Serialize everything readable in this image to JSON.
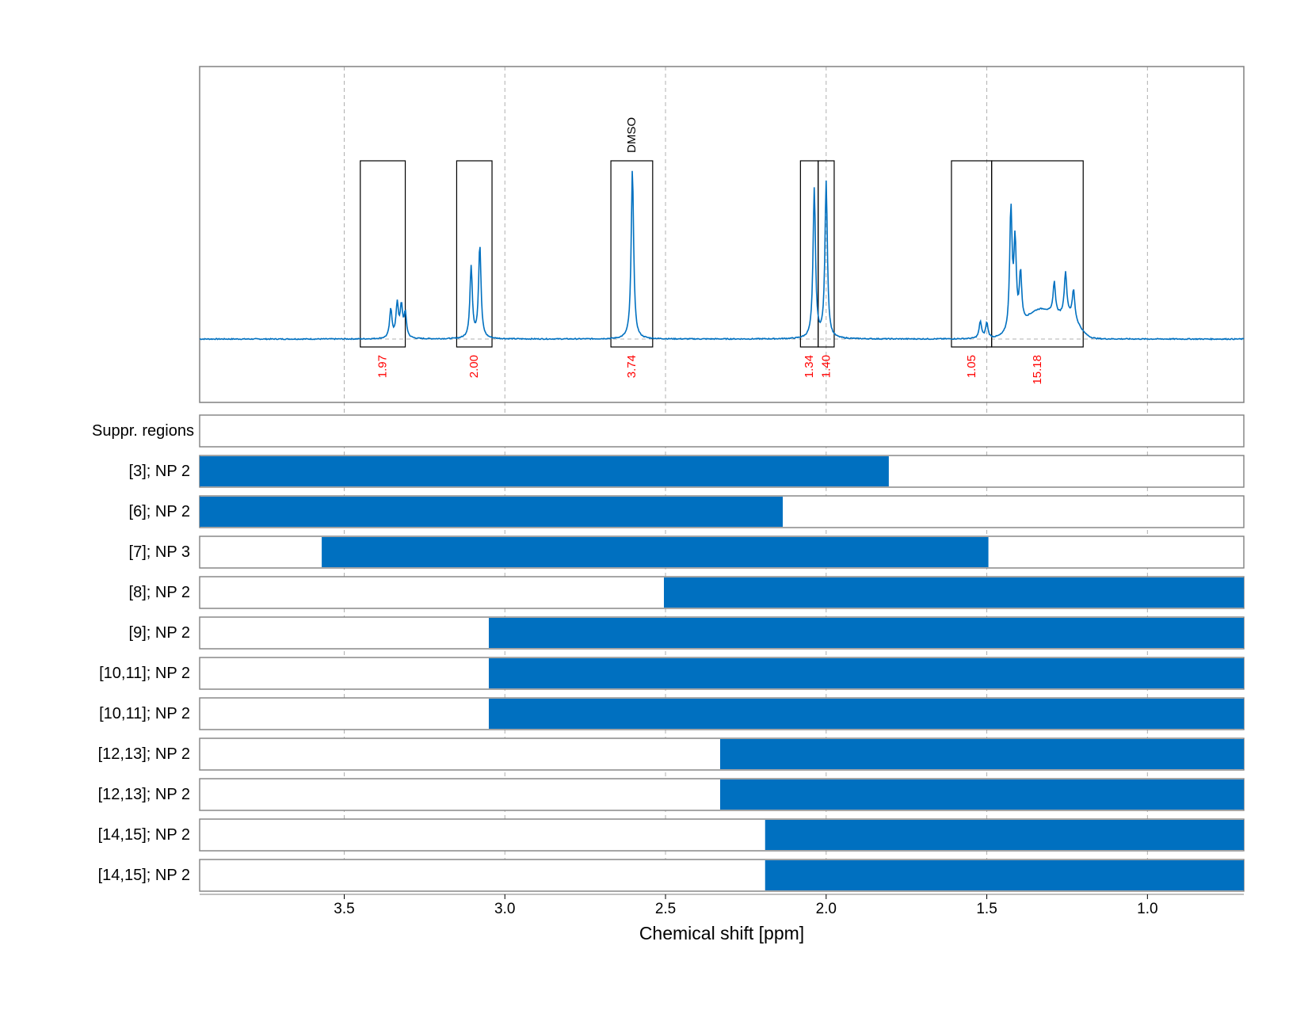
{
  "chart_data": {
    "type": "line",
    "xlabel": "Chemical shift [ppm]",
    "xlim": [
      3.95,
      0.7
    ],
    "x_reversed": true,
    "x_ticks": [
      3.5,
      3.0,
      2.5,
      2.0,
      1.5,
      1.0
    ],
    "x_tick_labels": [
      "3.5",
      "3.0",
      "2.5",
      "2.0",
      "1.5",
      "1.0"
    ],
    "grid": "vertical dashed",
    "spectrum": {
      "baseline": 0,
      "peaks": [
        {
          "center": 3.355,
          "height": 0.17
        },
        {
          "center": 3.335,
          "height": 0.2
        },
        {
          "center": 3.322,
          "height": 0.18
        },
        {
          "center": 3.31,
          "height": 0.14
        },
        {
          "center": 3.105,
          "height": 0.42
        },
        {
          "center": 3.078,
          "height": 0.55
        },
        {
          "center": 2.603,
          "height": 1.0
        },
        {
          "center": 2.037,
          "height": 0.88
        },
        {
          "center": 2.0,
          "height": 0.92
        },
        {
          "center": 1.52,
          "height": 0.1
        },
        {
          "center": 1.5,
          "height": 0.09
        },
        {
          "center": 1.425,
          "height": 0.72
        },
        {
          "center": 1.412,
          "height": 0.5
        },
        {
          "center": 1.395,
          "height": 0.3
        },
        {
          "center": 1.29,
          "height": 0.19
        },
        {
          "center": 1.255,
          "height": 0.25
        },
        {
          "center": 1.23,
          "height": 0.17
        }
      ],
      "broad": [
        {
          "center": 1.33,
          "height": 0.17,
          "width": 0.07
        },
        {
          "center": 1.24,
          "height": 0.1,
          "width": 0.04
        }
      ]
    },
    "integration_regions": [
      {
        "from": 3.45,
        "to": 3.31,
        "label": "1.97"
      },
      {
        "from": 3.15,
        "to": 3.04,
        "label": "2.00"
      },
      {
        "from": 2.67,
        "to": 2.54,
        "label": "3.74",
        "annotation": "DMSO"
      },
      {
        "from": 2.08,
        "to": 2.025,
        "label": "1.34"
      },
      {
        "from": 2.025,
        "to": 1.975,
        "label": "1.40"
      },
      {
        "from": 1.61,
        "to": 1.485,
        "label": "1.05"
      },
      {
        "from": 1.485,
        "to": 1.2,
        "label": "15.18"
      }
    ],
    "tracks": [
      {
        "label": "Suppr. regions",
        "from": null,
        "to": null
      },
      {
        "label": "[3]; NP 2",
        "from": 3.95,
        "to": 1.805
      },
      {
        "label": "[6]; NP 2",
        "from": 3.95,
        "to": 2.135
      },
      {
        "label": "[7]; NP 3",
        "from": 3.57,
        "to": 1.495
      },
      {
        "label": "[8]; NP 2",
        "from": 2.505,
        "to": 0.7
      },
      {
        "label": "[9]; NP 2",
        "from": 3.05,
        "to": 0.7
      },
      {
        "label": "[10,11]; NP 2",
        "from": 3.05,
        "to": 0.7
      },
      {
        "label": "[10,11]; NP 2",
        "from": 3.05,
        "to": 0.7
      },
      {
        "label": "[12,13]; NP 2",
        "from": 2.33,
        "to": 0.7
      },
      {
        "label": "[12,13]; NP 2",
        "from": 2.33,
        "to": 0.7
      },
      {
        "label": "[14,15]; NP 2",
        "from": 2.19,
        "to": 0.7
      },
      {
        "label": "[14,15]; NP 2",
        "from": 2.19,
        "to": 0.7
      }
    ]
  },
  "colors": {
    "spectrum": "#0070c0",
    "bar": "#0070c0",
    "integral_label": "#ff0000",
    "box": "#000000",
    "frame": "#808080",
    "grid": "#b0b0b0"
  }
}
